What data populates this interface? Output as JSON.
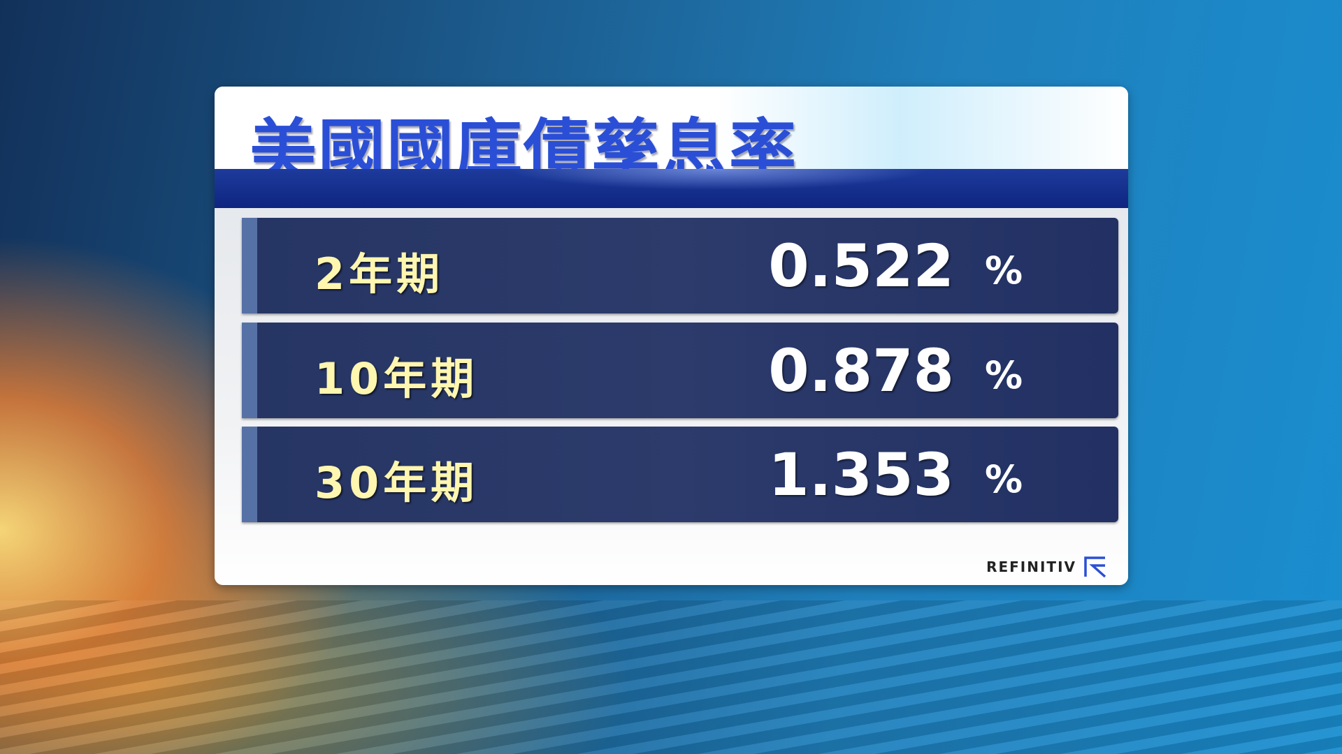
{
  "title": "美國國庫債孳息率",
  "rows": [
    {
      "label": "2年期",
      "value": "0.522",
      "unit": "%"
    },
    {
      "label": "10年期",
      "value": "0.878",
      "unit": "%"
    },
    {
      "label": "30年期",
      "value": "1.353",
      "unit": "%"
    }
  ],
  "source": {
    "logo_text": "REFINITIV",
    "icon": "refinitiv-logo-icon"
  },
  "colors": {
    "title": "#2a4fd6",
    "label": "#fff6b0",
    "row_bg": "#2c3b6b",
    "logo_accent": "#2a4fd6"
  }
}
